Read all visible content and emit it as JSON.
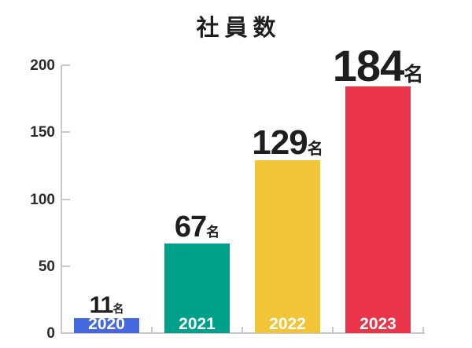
{
  "title": "社員数",
  "chart_data": {
    "type": "bar",
    "title": "社員数",
    "categories": [
      "2020",
      "2021",
      "2022",
      "2023"
    ],
    "values": [
      11,
      67,
      129,
      184
    ],
    "unit_suffix": "名",
    "value_labels": [
      "11名",
      "67名",
      "129名",
      "184名"
    ],
    "xlabel": "",
    "ylabel": "",
    "ylim": [
      0,
      200
    ],
    "yticks": [
      0,
      50,
      100,
      150,
      200
    ],
    "grid": false,
    "legend": "none",
    "bar_colors": [
      "#4568DF",
      "#00A18A",
      "#F2C437",
      "#E9344A"
    ],
    "axis_color": "#C9C9C9",
    "value_label_color": "#1E1E1E",
    "category_label_color": "#FFFFFF",
    "value_label_font_sizes": [
      30,
      38,
      44,
      56
    ]
  }
}
